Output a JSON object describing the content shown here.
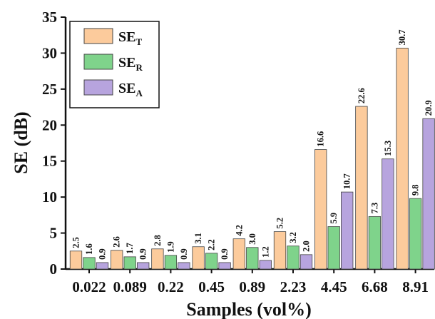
{
  "chart_data": {
    "type": "bar",
    "xlabel": "Samples (vol%)",
    "ylabel": "SE (dB)",
    "ylim": [
      0,
      35
    ],
    "yticks": [
      0,
      5,
      10,
      15,
      20,
      25,
      30,
      35
    ],
    "categories": [
      "0.022",
      "0.089",
      "0.22",
      "0.45",
      "0.89",
      "2.23",
      "4.45",
      "6.68",
      "8.91"
    ],
    "legend_position": "top-left",
    "series": [
      {
        "name": "SE",
        "subscript": "T",
        "color": "#FCCB9C",
        "values": [
          2.5,
          2.6,
          2.8,
          3.1,
          4.2,
          5.2,
          16.6,
          22.6,
          30.7
        ]
      },
      {
        "name": "SE",
        "subscript": "R",
        "color": "#7FD38B",
        "values": [
          1.6,
          1.7,
          1.9,
          2.2,
          3.0,
          3.2,
          5.9,
          7.3,
          9.8
        ]
      },
      {
        "name": "SE",
        "subscript": "A",
        "color": "#B7A4DE",
        "values": [
          0.9,
          0.9,
          0.9,
          0.9,
          1.2,
          2.0,
          10.7,
          15.3,
          20.9
        ]
      }
    ],
    "data_labels": [
      [
        "2.5",
        "2.6",
        "2.8",
        "3.1",
        "4.2",
        "5.2",
        "16.6",
        "22.6",
        "30.7"
      ],
      [
        "1.6",
        "1.7",
        "1.9",
        "2.2",
        "3.0",
        "3.2",
        "5.9",
        "7.3",
        "9.8"
      ],
      [
        "0.9",
        "0.9",
        "0.9",
        "0.9",
        "1.2",
        "2.0",
        "10.7",
        "15.3",
        "20.9"
      ]
    ]
  }
}
